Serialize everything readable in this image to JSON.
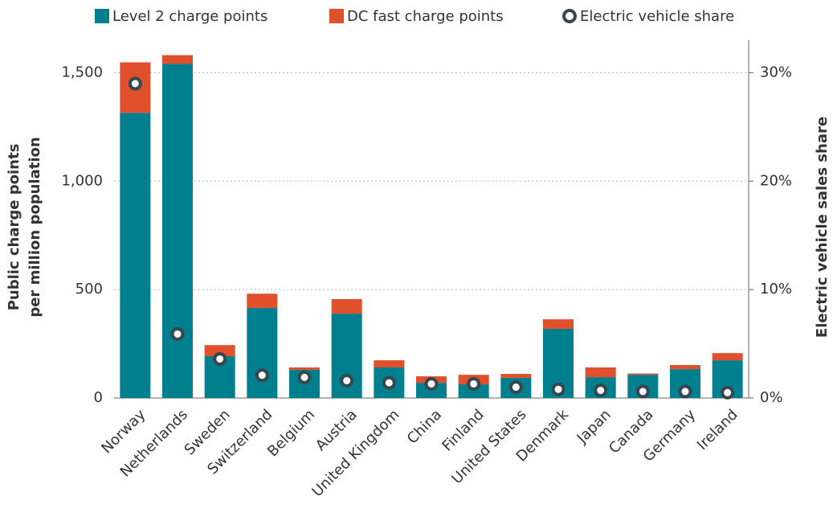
{
  "chart_data": {
    "type": "bar",
    "stacked": true,
    "y_label": [
      "Public charge points",
      "per million population"
    ],
    "y2_label": "Electric vehicle sales share",
    "categories": [
      "Norway",
      "Netherlands",
      "Sweden",
      "Switzerland",
      "Belgium",
      "Austria",
      "United Kingdom",
      "China",
      "Finland",
      "United States",
      "Denmark",
      "Japan",
      "Canada",
      "Germany",
      "Ireland"
    ],
    "series": [
      {
        "name": "Level 2 charge points",
        "color": "#007f8f",
        "values": [
          1315,
          1541,
          193,
          415,
          130,
          389,
          141,
          70,
          63,
          93,
          319,
          96,
          107,
          133,
          174
        ]
      },
      {
        "name": "DC fast charge points",
        "color": "#e0502d",
        "values": [
          233,
          40,
          51,
          66,
          11,
          67,
          33,
          30,
          44,
          18,
          44,
          45,
          6,
          19,
          33
        ]
      },
      {
        "name": "Electric vehicle share",
        "type": "scatter",
        "axis": "y2",
        "color": "#37474f",
        "values": [
          29.0,
          5.9,
          3.6,
          2.1,
          1.9,
          1.6,
          1.4,
          1.3,
          1.3,
          1.0,
          0.8,
          0.7,
          0.6,
          0.6,
          0.5
        ]
      }
    ],
    "ylim": [
      0,
      1650
    ],
    "yticks": [
      0,
      500,
      {
        "value": 1000,
        "label": "1,000"
      },
      {
        "value": 1500,
        "label": "1,500"
      }
    ],
    "y2lim": [
      0,
      33
    ],
    "y2ticks": [
      {
        "value": 0,
        "label": "0%"
      },
      {
        "value": 10,
        "label": "10%"
      },
      {
        "value": 20,
        "label": "20%"
      },
      {
        "value": 30,
        "label": "30%"
      }
    ],
    "grid": true,
    "legend": "top"
  }
}
